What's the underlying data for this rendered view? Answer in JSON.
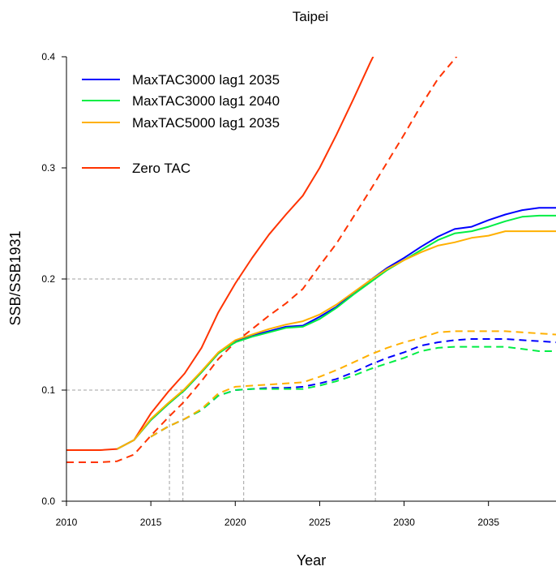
{
  "chart_data": {
    "type": "line",
    "title": "Taipei",
    "xlabel": "Year",
    "ylabel": "SSB/SSB1931",
    "xlim": [
      2010,
      2039
    ],
    "ylim": [
      0.0,
      0.4
    ],
    "x_ticks": [
      2010,
      2015,
      2020,
      2025,
      2030,
      2035
    ],
    "x_tick_labels": [
      "2010",
      "2015",
      "2020",
      "2025",
      "2030",
      "2035"
    ],
    "y_ticks": [
      0.0,
      0.1,
      0.2,
      0.3,
      0.4
    ],
    "y_tick_labels": [
      "0.0",
      "0.1",
      "0.2",
      "0.3",
      "0.4"
    ],
    "grid": false,
    "legend_position": "top-left",
    "legend": [
      {
        "label": "MaxTAC3000 lag1 2035",
        "color": "#0000ff"
      },
      {
        "label": "MaxTAC3000 lag1 2040",
        "color": "#00ee44"
      },
      {
        "label": "MaxTAC5000 lag1 2035",
        "color": "#ffb000"
      },
      {
        "label": "Zero TAC",
        "color": "#ff3300"
      }
    ],
    "reference_lines": [
      {
        "orientation": "horizontal",
        "y": 0.2,
        "x_end": 2028.3
      },
      {
        "orientation": "horizontal",
        "y": 0.1,
        "x_end": 2016.9
      },
      {
        "orientation": "vertical",
        "x": 2016.1,
        "y_end": 0.08
      },
      {
        "orientation": "vertical",
        "x": 2016.9,
        "y_end": 0.1
      },
      {
        "orientation": "vertical",
        "x": 2020.5,
        "y_end": 0.2
      },
      {
        "orientation": "vertical",
        "x": 2028.3,
        "y_end": 0.2
      }
    ],
    "series": [
      {
        "color": "#ff3300",
        "dash": false,
        "x": [
          2010,
          2011,
          2012,
          2013,
          2014,
          2015,
          2016,
          2017,
          2018,
          2019,
          2020,
          2021,
          2022,
          2023,
          2024,
          2025,
          2026,
          2027,
          2028,
          2028.3
        ],
        "y": [
          0.046,
          0.046,
          0.046,
          0.047,
          0.055,
          0.079,
          0.098,
          0.115,
          0.138,
          0.17,
          0.196,
          0.219,
          0.24,
          0.258,
          0.275,
          0.3,
          0.33,
          0.362,
          0.395,
          0.404
        ]
      },
      {
        "color": "#ff3300",
        "dash": true,
        "x": [
          2010,
          2011,
          2012,
          2013,
          2014,
          2015,
          2016,
          2017,
          2018,
          2019,
          2020,
          2021,
          2022,
          2023,
          2024,
          2025,
          2026,
          2027,
          2028,
          2029,
          2030,
          2031,
          2032,
          2033,
          2033.2
        ],
        "y": [
          0.035,
          0.035,
          0.035,
          0.036,
          0.042,
          0.059,
          0.075,
          0.09,
          0.108,
          0.128,
          0.143,
          0.155,
          0.167,
          0.178,
          0.191,
          0.212,
          0.232,
          0.256,
          0.28,
          0.305,
          0.33,
          0.356,
          0.38,
          0.398,
          0.402
        ]
      },
      {
        "name": "MaxTAC3000 lag1 2035",
        "color": "#0000ff",
        "dash": false,
        "x": [
          2013,
          2014,
          2015,
          2016,
          2017,
          2018,
          2019,
          2020,
          2021,
          2022,
          2023,
          2024,
          2025,
          2026,
          2027,
          2028,
          2029,
          2030,
          2031,
          2032,
          2033,
          2034,
          2035,
          2036,
          2037,
          2038,
          2039
        ],
        "y": [
          0.047,
          0.055,
          0.073,
          0.087,
          0.1,
          0.116,
          0.133,
          0.144,
          0.149,
          0.153,
          0.157,
          0.158,
          0.166,
          0.175,
          0.187,
          0.199,
          0.21,
          0.219,
          0.229,
          0.238,
          0.245,
          0.247,
          0.253,
          0.258,
          0.262,
          0.264,
          0.264
        ]
      },
      {
        "name": "MaxTAC3000 lag1 2040",
        "color": "#00ee44",
        "dash": false,
        "x": [
          2013,
          2014,
          2015,
          2016,
          2017,
          2018,
          2019,
          2020,
          2021,
          2022,
          2023,
          2024,
          2025,
          2026,
          2027,
          2028,
          2029,
          2030,
          2031,
          2032,
          2033,
          2034,
          2035,
          2036,
          2037,
          2038,
          2039
        ],
        "y": [
          0.047,
          0.055,
          0.073,
          0.087,
          0.1,
          0.116,
          0.133,
          0.143,
          0.148,
          0.152,
          0.156,
          0.157,
          0.164,
          0.174,
          0.186,
          0.197,
          0.208,
          0.217,
          0.226,
          0.235,
          0.241,
          0.243,
          0.247,
          0.252,
          0.256,
          0.257,
          0.257
        ]
      },
      {
        "name": "MaxTAC5000 lag1 2035",
        "color": "#ffb000",
        "dash": false,
        "x": [
          2013,
          2014,
          2015,
          2016,
          2017,
          2018,
          2019,
          2020,
          2021,
          2022,
          2023,
          2024,
          2025,
          2026,
          2027,
          2028,
          2029,
          2030,
          2031,
          2032,
          2033,
          2034,
          2035,
          2036,
          2037,
          2038,
          2039
        ],
        "y": [
          0.047,
          0.055,
          0.074,
          0.088,
          0.101,
          0.117,
          0.134,
          0.145,
          0.15,
          0.155,
          0.159,
          0.162,
          0.168,
          0.177,
          0.188,
          0.199,
          0.209,
          0.217,
          0.224,
          0.23,
          0.233,
          0.237,
          0.239,
          0.243,
          0.243,
          0.243,
          0.243
        ]
      },
      {
        "name": "MaxTAC3000 lag1 2035",
        "color": "#0000ff",
        "dash": true,
        "x": [
          2015,
          2016,
          2017,
          2018,
          2019,
          2020,
          2021,
          2022,
          2023,
          2024,
          2025,
          2026,
          2027,
          2028,
          2029,
          2030,
          2031,
          2032,
          2033,
          2034,
          2035,
          2036,
          2037,
          2038,
          2039
        ],
        "y": [
          0.058,
          0.067,
          0.074,
          0.082,
          0.095,
          0.1,
          0.101,
          0.102,
          0.102,
          0.103,
          0.106,
          0.11,
          0.116,
          0.123,
          0.129,
          0.134,
          0.14,
          0.143,
          0.145,
          0.146,
          0.146,
          0.146,
          0.145,
          0.144,
          0.143
        ]
      },
      {
        "name": "MaxTAC3000 lag1 2040",
        "color": "#00ee44",
        "dash": true,
        "x": [
          2015,
          2016,
          2017,
          2018,
          2019,
          2020,
          2021,
          2022,
          2023,
          2024,
          2025,
          2026,
          2027,
          2028,
          2029,
          2030,
          2031,
          2032,
          2033,
          2034,
          2035,
          2036,
          2037,
          2038,
          2039
        ],
        "y": [
          0.058,
          0.067,
          0.074,
          0.082,
          0.095,
          0.1,
          0.101,
          0.101,
          0.101,
          0.101,
          0.104,
          0.108,
          0.113,
          0.119,
          0.124,
          0.129,
          0.135,
          0.138,
          0.139,
          0.139,
          0.139,
          0.139,
          0.137,
          0.135,
          0.135
        ]
      },
      {
        "name": "MaxTAC5000 lag1 2035",
        "color": "#ffb000",
        "dash": true,
        "x": [
          2015,
          2016,
          2017,
          2018,
          2019,
          2020,
          2021,
          2022,
          2023,
          2024,
          2025,
          2026,
          2027,
          2028,
          2029,
          2030,
          2031,
          2032,
          2033,
          2034,
          2035,
          2036,
          2037,
          2038,
          2039
        ],
        "y": [
          0.058,
          0.067,
          0.074,
          0.083,
          0.097,
          0.103,
          0.104,
          0.105,
          0.106,
          0.107,
          0.112,
          0.118,
          0.125,
          0.132,
          0.138,
          0.143,
          0.147,
          0.152,
          0.153,
          0.153,
          0.153,
          0.153,
          0.152,
          0.151,
          0.15
        ]
      }
    ]
  }
}
